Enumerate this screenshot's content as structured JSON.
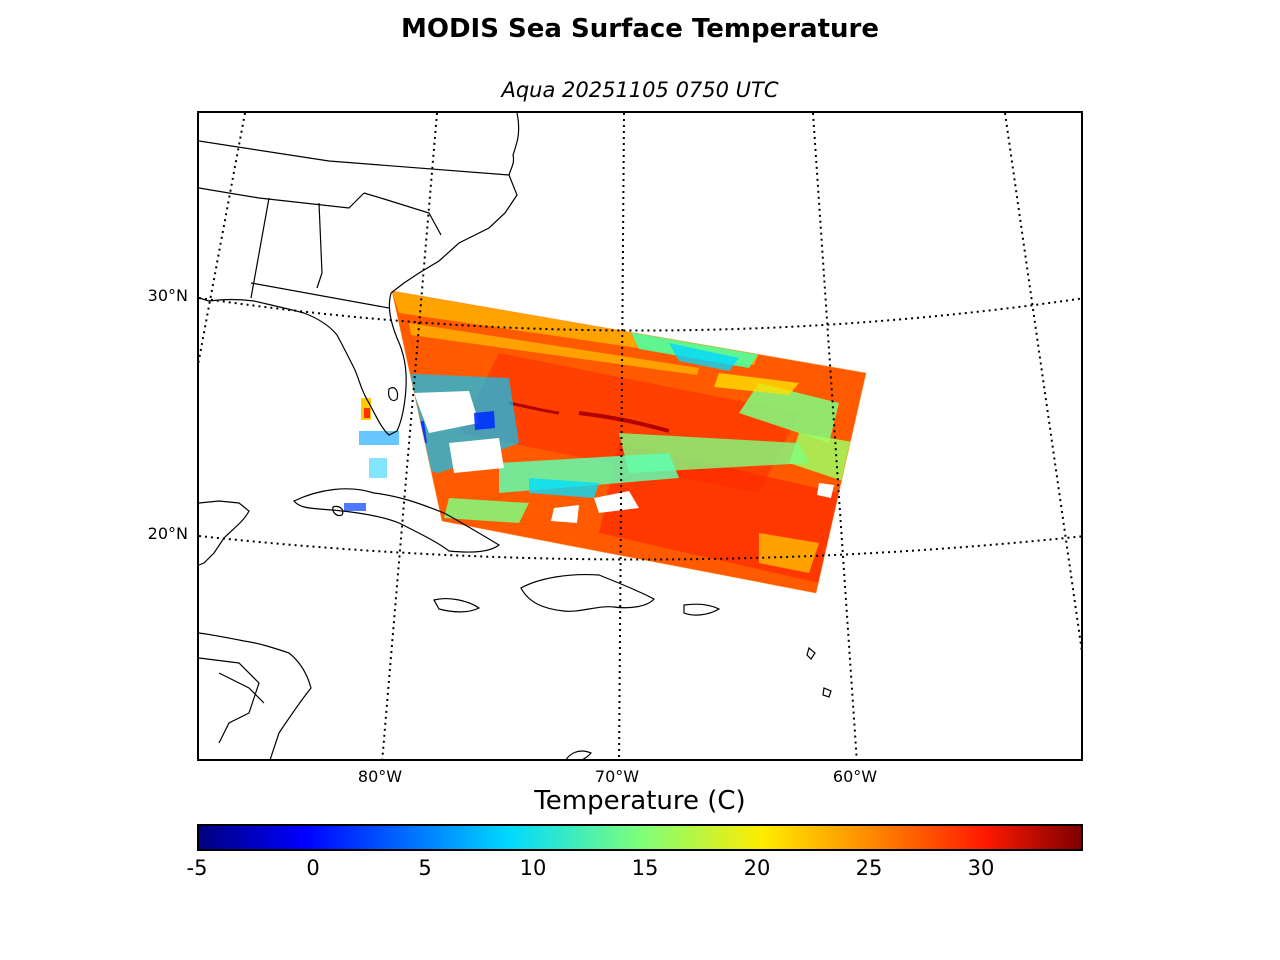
{
  "title": "MODIS Sea Surface Temperature",
  "subtitle": "Aqua 20251105 0750 UTC",
  "map": {
    "lat_labels": [
      "30°N",
      "20°N"
    ],
    "lon_labels": [
      "80°W",
      "70°W",
      "60°W"
    ],
    "swath_region": "Western North Atlantic east of Florida and the Bahamas",
    "land_fill": "#ffffff",
    "coastline_color": "#000000"
  },
  "colorbar": {
    "label": "Temperature (C)",
    "min": -5,
    "max": 34.5,
    "ticks": [
      "-5",
      "0",
      "5",
      "10",
      "15",
      "20",
      "25",
      "30"
    ],
    "colormap": "jet"
  }
}
